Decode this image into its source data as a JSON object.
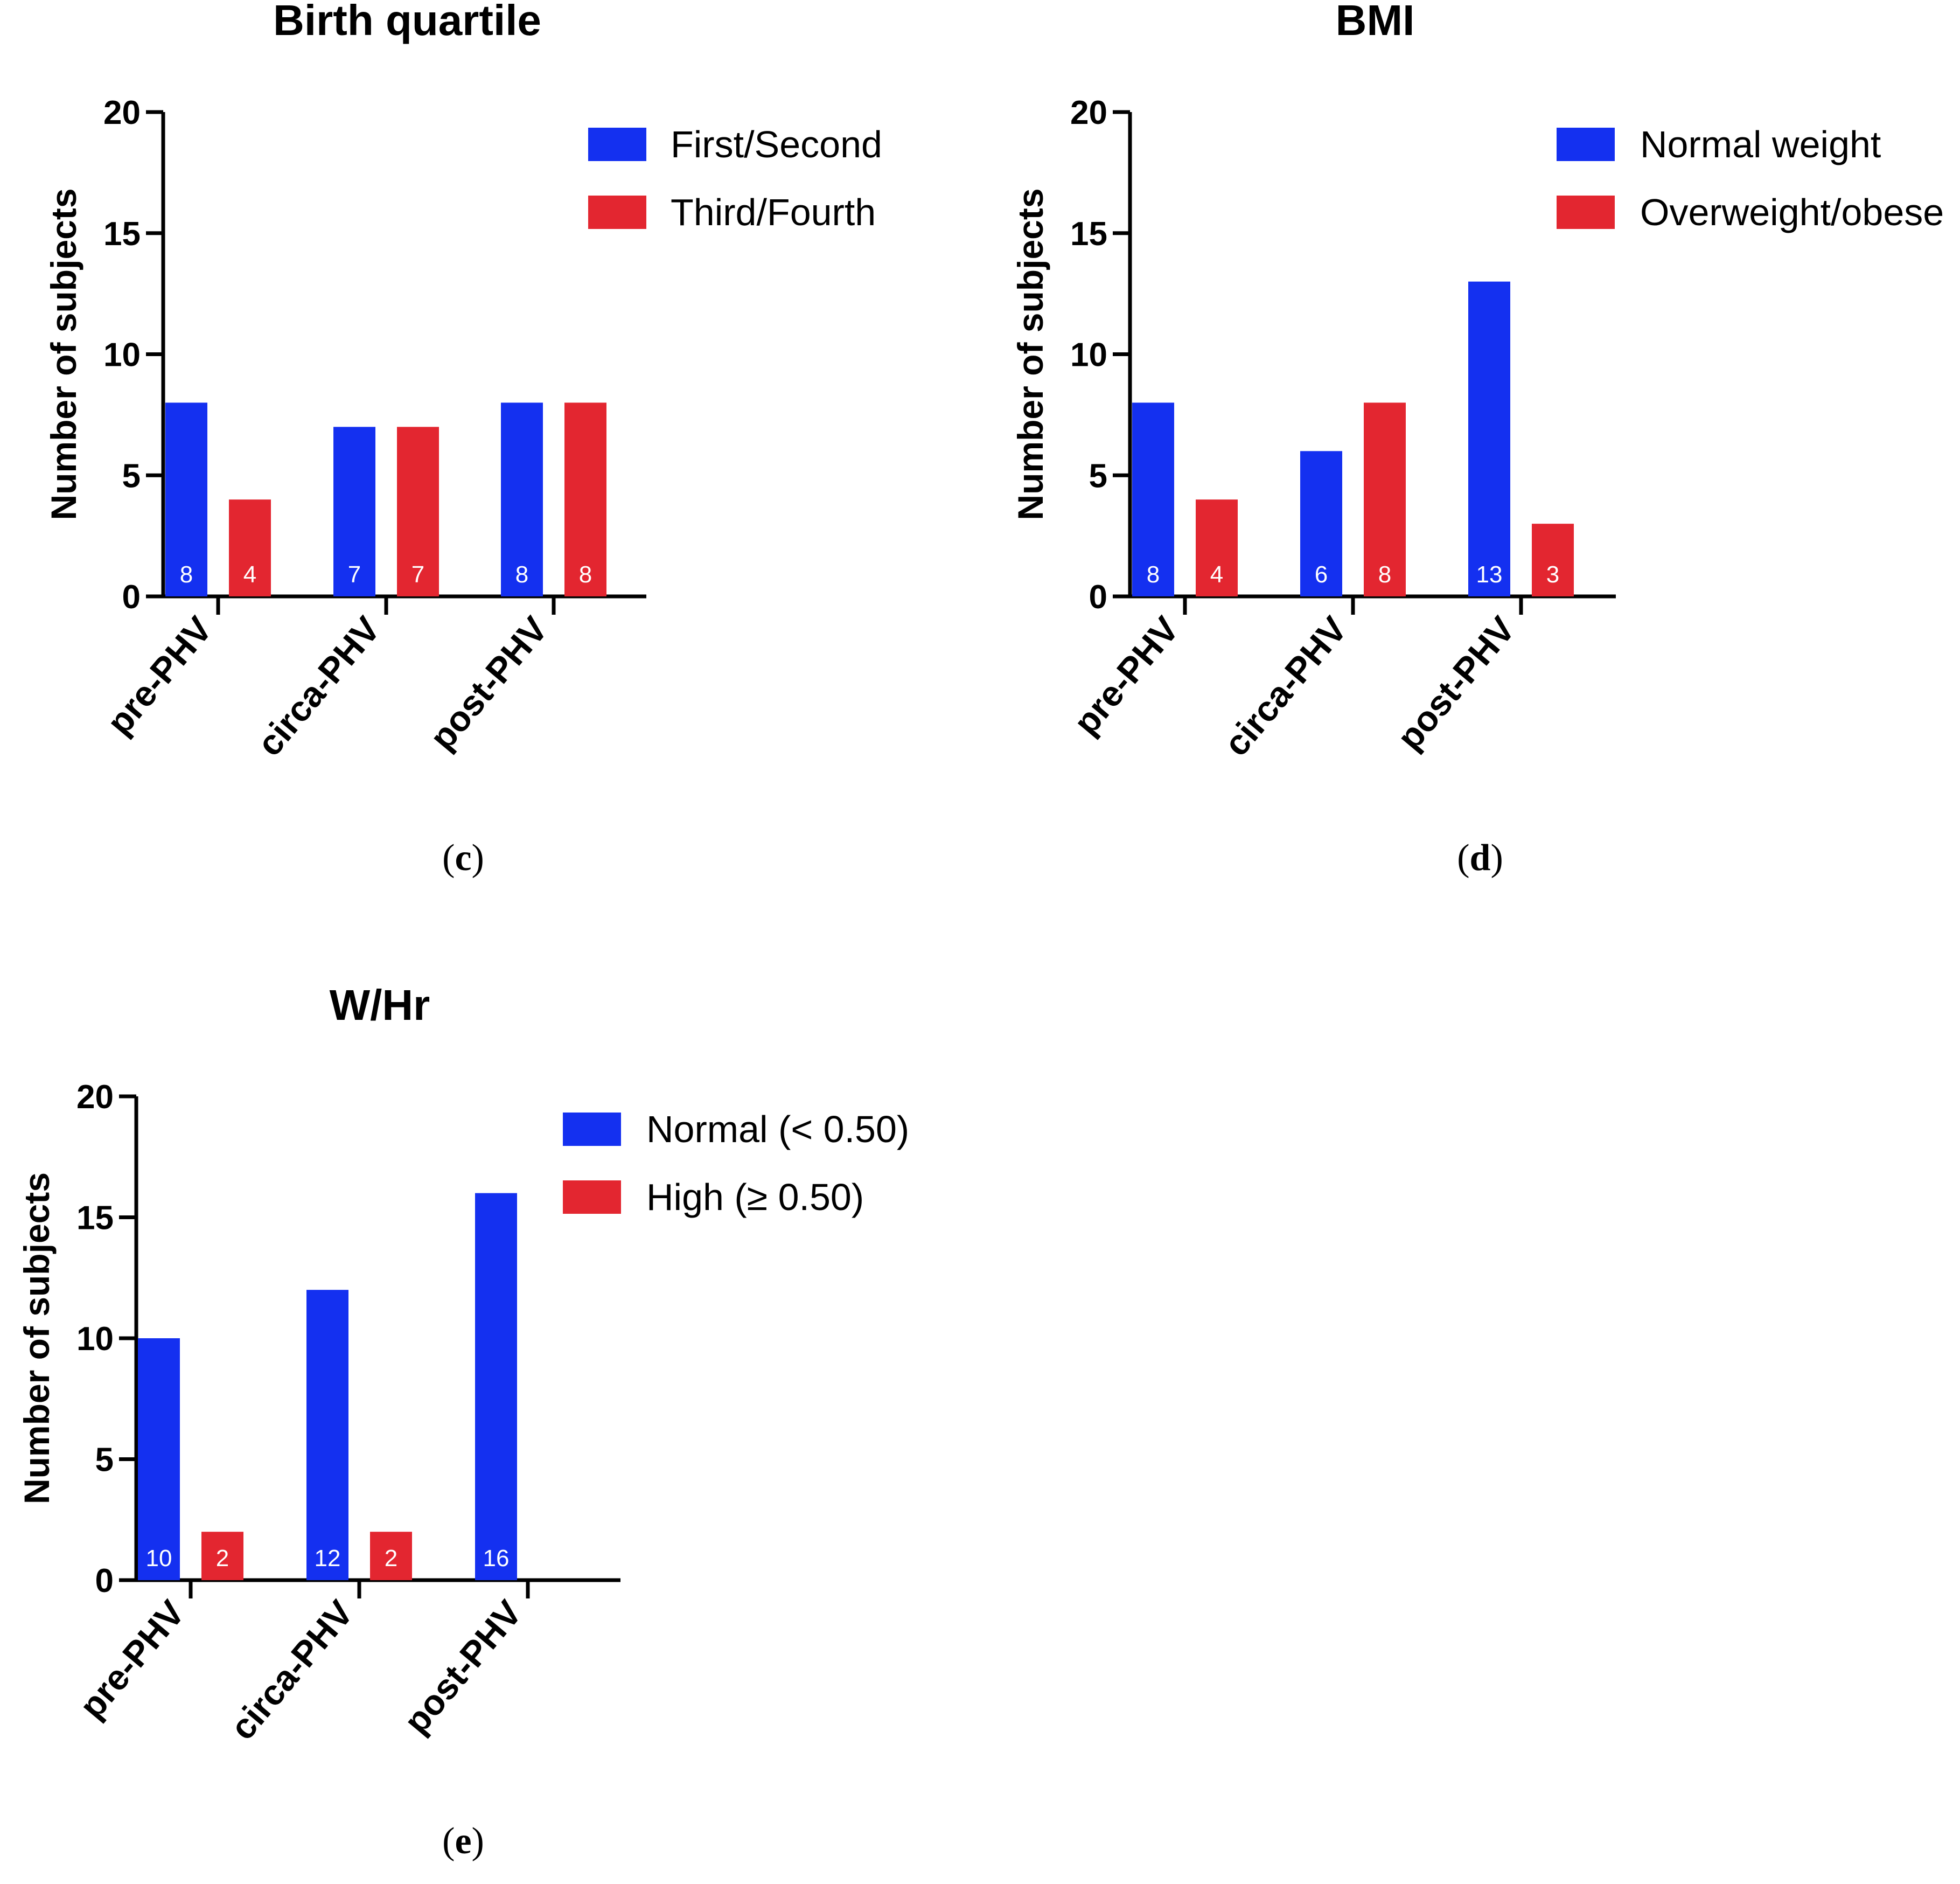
{
  "colors": {
    "series1": "#1430f0",
    "series2": "#e32630",
    "axis": "#000000",
    "bar_label": "#ffffff"
  },
  "chart_data": [
    {
      "type": "bar",
      "panel_label": "(c)",
      "panel_letter": "c",
      "title": "Birth quartile",
      "ylabel": "Number of subjects",
      "xlabel": "",
      "ylim": [
        0,
        20
      ],
      "yticks": [
        0,
        5,
        10,
        15,
        20
      ],
      "categories": [
        "pre-PHV",
        "circa-PHV",
        "post-PHV"
      ],
      "legend_position": "top-right",
      "series": [
        {
          "name": "First/Second",
          "values": [
            8,
            7,
            8
          ]
        },
        {
          "name": "Third/Fourth",
          "values": [
            4,
            7,
            8
          ]
        }
      ]
    },
    {
      "type": "bar",
      "panel_label": "(d)",
      "panel_letter": "d",
      "title": "BMI",
      "ylabel": "Number of subjects",
      "xlabel": "",
      "ylim": [
        0,
        20
      ],
      "yticks": [
        0,
        5,
        10,
        15,
        20
      ],
      "categories": [
        "pre-PHV",
        "circa-PHV",
        "post-PHV"
      ],
      "legend_position": "top-right",
      "series": [
        {
          "name": "Normal weight",
          "values": [
            8,
            6,
            13
          ]
        },
        {
          "name": "Overweight/obese",
          "values": [
            4,
            8,
            3
          ]
        }
      ]
    },
    {
      "type": "bar",
      "panel_label": "(e)",
      "panel_letter": "e",
      "title": "W/Hr",
      "ylabel": "Number of subjects",
      "xlabel": "",
      "ylim": [
        0,
        20
      ],
      "yticks": [
        0,
        5,
        10,
        15,
        20
      ],
      "categories": [
        "pre-PHV",
        "circa-PHV",
        "post-PHV"
      ],
      "legend_position": "top-right",
      "series": [
        {
          "name": "Normal (< 0.50)",
          "values": [
            10,
            12,
            16
          ]
        },
        {
          "name": "High (≥ 0.50)",
          "values": [
            2,
            2,
            null
          ]
        }
      ]
    }
  ]
}
